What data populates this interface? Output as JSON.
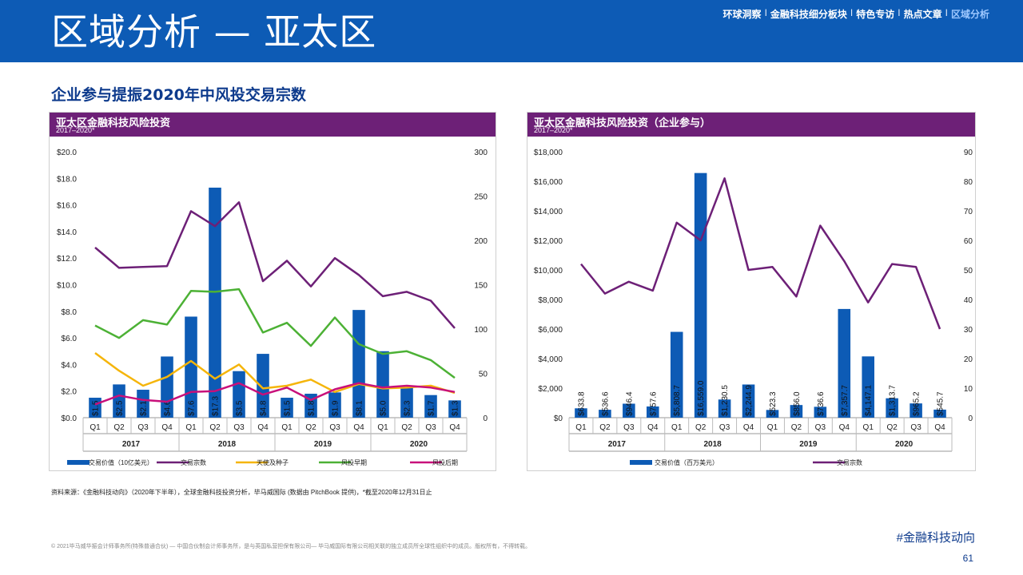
{
  "header": {
    "title": "区域分析 — 亚太区",
    "nav": [
      "环球洞察",
      "金融科技细分板块",
      "特色专访",
      "热点文章",
      "区域分析"
    ],
    "active_nav": "区域分析",
    "nav_separator": "I"
  },
  "section_title": "企业参与提振2020年中风投交易宗数",
  "colors": {
    "header_blue": "#0d5bb5",
    "panel_purple": "#6d2077",
    "bar_blue": "#0d5bb5",
    "deals_purple": "#6d2077",
    "angel_yellow": "#f5b50a",
    "early_green": "#4cb135",
    "late_magenta": "#c8107a"
  },
  "chart_data": [
    {
      "type": "bar",
      "title": "亚太区金融科技风险投资",
      "subtitle": "2017–2020*",
      "categories": [
        "Q1",
        "Q2",
        "Q3",
        "Q4",
        "Q1",
        "Q2",
        "Q3",
        "Q4",
        "Q1",
        "Q2",
        "Q3",
        "Q4",
        "Q1",
        "Q2",
        "Q3",
        "Q4"
      ],
      "years": [
        "2017",
        "2018",
        "2019",
        "2020"
      ],
      "series": [
        {
          "name": "交易价值（10亿美元）",
          "kind": "bar",
          "axis": "left",
          "color": "#0d5bb5",
          "values": [
            1.5,
            2.5,
            2.1,
            4.6,
            7.6,
            17.3,
            3.5,
            4.8,
            1.5,
            1.8,
            1.9,
            8.1,
            5.0,
            2.3,
            1.7,
            1.3
          ],
          "labels": [
            "$1.5",
            "$2.5",
            "$2.1",
            "$4.6",
            "$7.6",
            "$17.3",
            "$3.5",
            "$4.8",
            "$1.5",
            "$1.8",
            "$1.9",
            "$8.1",
            "$5.0",
            "$2.3",
            "$1.7",
            "$1.3"
          ]
        },
        {
          "name": "交易宗数",
          "kind": "line",
          "axis": "right",
          "color": "#6d2077",
          "values": [
            192,
            169,
            170,
            171,
            233,
            216,
            243,
            154,
            177,
            148,
            180,
            161,
            137,
            142,
            132,
            101
          ]
        },
        {
          "name": "天使及种子",
          "kind": "line",
          "axis": "right",
          "color": "#f5b50a",
          "values": [
            73,
            53,
            36,
            46,
            64,
            44,
            60,
            33,
            36,
            43,
            29,
            38,
            33,
            34,
            36,
            28
          ]
        },
        {
          "name": "风投早期",
          "kind": "line",
          "axis": "right",
          "color": "#4cb135",
          "values": [
            104,
            90,
            110,
            105,
            143,
            142,
            145,
            96,
            107,
            81,
            113,
            83,
            72,
            75,
            65,
            45
          ]
        },
        {
          "name": "风投后期",
          "kind": "line",
          "axis": "right",
          "color": "#c8107a",
          "values": [
            15,
            25,
            20,
            18,
            29,
            30,
            39,
            26,
            34,
            20,
            32,
            39,
            34,
            36,
            34,
            29
          ]
        }
      ],
      "left_axis": {
        "ylim": [
          0,
          20
        ],
        "ticks": [
          "$0.0",
          "$2.0",
          "$4.0",
          "$6.0",
          "$8.0",
          "$10.0",
          "$12.0",
          "$14.0",
          "$16.0",
          "$18.0",
          "$20.0"
        ]
      },
      "right_axis": {
        "ylim": [
          0,
          300
        ],
        "ticks": [
          "0",
          "50",
          "100",
          "150",
          "200",
          "250",
          "300"
        ]
      }
    },
    {
      "type": "bar",
      "title": "亚太区金融科技风险投资（企业参与）",
      "subtitle": "2017–2020*",
      "categories": [
        "Q1",
        "Q2",
        "Q3",
        "Q4",
        "Q1",
        "Q2",
        "Q3",
        "Q4",
        "Q1",
        "Q2",
        "Q3",
        "Q4",
        "Q1",
        "Q2",
        "Q3",
        "Q4"
      ],
      "years": [
        "2017",
        "2018",
        "2019",
        "2020"
      ],
      "series": [
        {
          "name": "交易价值（百万美元）",
          "kind": "bar",
          "axis": "left",
          "color": "#0d5bb5",
          "values": [
            633.8,
            536.6,
            946.4,
            757.6,
            5808.7,
            16559.0,
            1230.5,
            2244.9,
            523.3,
            856.0,
            736.6,
            7357.7,
            4147.1,
            1313.7,
            965.2,
            545.7
          ],
          "labels": [
            "$633.8",
            "$536.6",
            "$946.4",
            "$757.6",
            "$5,808.7",
            "$16,559.0",
            "$1,230.5",
            "$2,244.9",
            "$523.3",
            "$856.0",
            "$736.6",
            "$7,357.7",
            "$4,147.1",
            "$1,313.7",
            "$965.2",
            "$545.7"
          ]
        },
        {
          "name": "交易宗数",
          "kind": "line",
          "axis": "right",
          "color": "#6d2077",
          "values": [
            52,
            42,
            46,
            43,
            66,
            60,
            81,
            50,
            51,
            41,
            65,
            53,
            39,
            52,
            51,
            30
          ]
        }
      ],
      "left_axis": {
        "ylim": [
          0,
          18000
        ],
        "ticks": [
          "$0",
          "$2,000",
          "$4,000",
          "$6,000",
          "$8,000",
          "$10,000",
          "$12,000",
          "$14,000",
          "$16,000",
          "$18,000"
        ]
      },
      "right_axis": {
        "ylim": [
          0,
          90
        ],
        "ticks": [
          "0",
          "10",
          "20",
          "30",
          "40",
          "50",
          "60",
          "70",
          "80",
          "90"
        ]
      }
    }
  ],
  "source": "资料来源：《金融科技动向》（2020年下半年），全球金融科技投资分析，毕马威国际 (数据由 PitchBook 提供)，*截至2020年12月31日止",
  "copyright": "© 2021毕马威华振会计师事务所(特殊普通合伙) — 中国合伙制会计师事务所，是与英国私营担保有限公司— 毕马威国际有限公司相关联的独立成员所全球性组织中的成员。版权所有，不得转载。",
  "hashtag": "#金融科技动向",
  "page_number": "61"
}
